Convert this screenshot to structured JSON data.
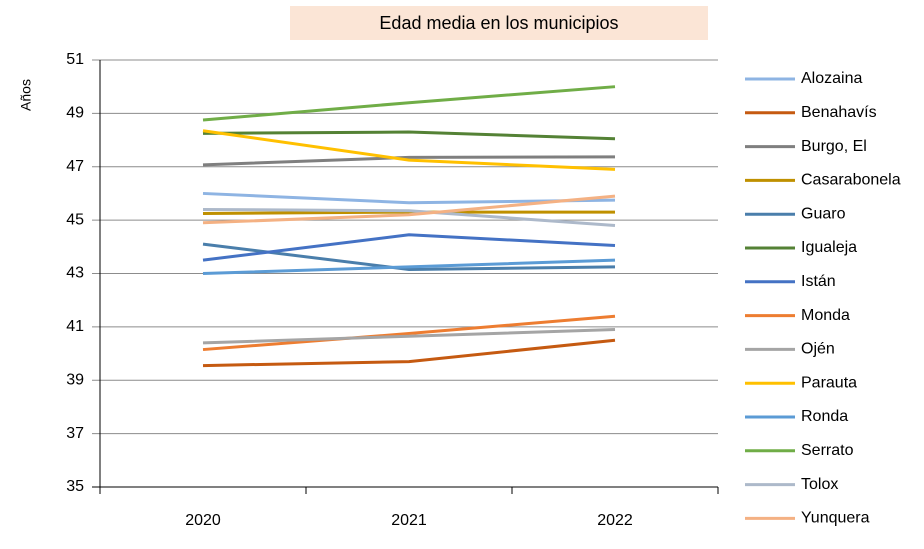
{
  "chart_data": {
    "type": "line",
    "title": "Edad media en los municipios",
    "y_label": "Años",
    "categories": [
      "2020",
      "2021",
      "2022"
    ],
    "ylim": [
      35,
      51
    ],
    "yticks": [
      35,
      37,
      39,
      41,
      43,
      45,
      47,
      49,
      51
    ],
    "grid": true,
    "legend": "right",
    "series": [
      {
        "name": "Alozaina",
        "color": "#8eb4e3",
        "values": [
          46.0,
          45.65,
          45.75
        ]
      },
      {
        "name": "Benahavís",
        "color": "#c55a11",
        "values": [
          39.55,
          39.7,
          40.5
        ]
      },
      {
        "name": "Burgo, El",
        "color": "#7f7f7f",
        "values": [
          47.07,
          47.35,
          47.37
        ]
      },
      {
        "name": "Casarabonela",
        "color": "#bf9000",
        "values": [
          45.25,
          45.3,
          45.3
        ]
      },
      {
        "name": "Guaro",
        "color": "#4a7eab",
        "values": [
          44.1,
          43.15,
          43.25
        ]
      },
      {
        "name": "Igualeja",
        "color": "#548235",
        "values": [
          48.25,
          48.3,
          48.05
        ]
      },
      {
        "name": "Istán",
        "color": "#4472c4",
        "values": [
          43.5,
          44.45,
          44.05
        ]
      },
      {
        "name": "Monda",
        "color": "#ed7d31",
        "values": [
          40.15,
          40.75,
          41.4
        ]
      },
      {
        "name": "Ojén",
        "color": "#a5a5a5",
        "values": [
          40.4,
          40.65,
          40.9
        ]
      },
      {
        "name": "Parauta",
        "color": "#ffc000",
        "values": [
          48.35,
          47.25,
          46.9
        ]
      },
      {
        "name": "Ronda",
        "color": "#5b9bd5",
        "values": [
          43.0,
          43.25,
          43.5
        ]
      },
      {
        "name": "Serrato",
        "color": "#70ad47",
        "values": [
          48.75,
          49.4,
          50.0
        ]
      },
      {
        "name": "Tolox",
        "color": "#adb9ca",
        "values": [
          45.4,
          45.35,
          44.8
        ]
      },
      {
        "name": "Yunquera",
        "color": "#f4b183",
        "values": [
          44.9,
          45.2,
          45.9
        ]
      }
    ]
  }
}
